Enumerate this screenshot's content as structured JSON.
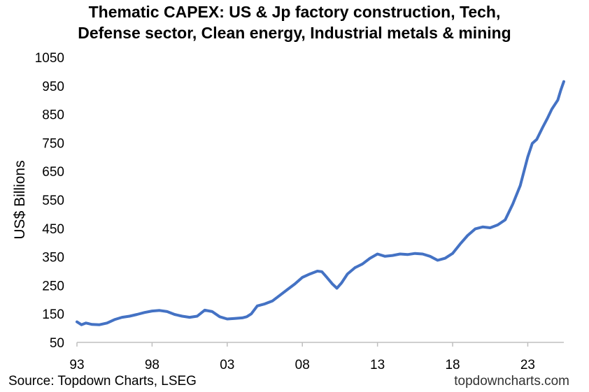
{
  "chart_data": {
    "type": "line",
    "title_lines": [
      "Thematic CAPEX: US & Jp factory construction, Tech,",
      "Defense sector, Clean energy, Industrial metals & mining"
    ],
    "ylabel": "US$ Billions",
    "xlabel": "",
    "ylim": [
      50,
      1050
    ],
    "y_ticks": [
      "1050",
      "950",
      "850",
      "750",
      "650",
      "550",
      "450",
      "350",
      "250",
      "150",
      "50"
    ],
    "x_ticks": [
      "93",
      "98",
      "03",
      "08",
      "13",
      "18",
      "23"
    ],
    "xlim": [
      1993,
      2025.4
    ],
    "line_color": "#4472C4",
    "grid": false,
    "series": [
      {
        "x": [
          1993.0,
          1993.3,
          1993.6,
          1994.0,
          1994.5,
          1995.0,
          1995.5,
          1996.0,
          1996.5,
          1997.0,
          1997.5,
          1998.0,
          1998.5,
          1999.0,
          1999.5,
          2000.0,
          2000.5,
          2001.0,
          2001.5,
          2002.0,
          2002.5,
          2003.0,
          2003.5,
          2004.0,
          2004.3,
          2004.6,
          2005.0,
          2005.5,
          2006.0,
          2006.5,
          2007.0,
          2007.5,
          2008.0,
          2008.5,
          2009.0,
          2009.3,
          2009.6,
          2010.0,
          2010.3,
          2010.6,
          2011.0,
          2011.5,
          2012.0,
          2012.5,
          2013.0,
          2013.5,
          2014.0,
          2014.5,
          2015.0,
          2015.5,
          2016.0,
          2016.5,
          2017.0,
          2017.5,
          2018.0,
          2018.5,
          2019.0,
          2019.5,
          2020.0,
          2020.5,
          2021.0,
          2021.5,
          2022.0,
          2022.5,
          2023.0,
          2023.3,
          2023.6,
          2024.0,
          2024.3,
          2024.6,
          2025.0,
          2025.2,
          2025.4
        ],
        "values": [
          122,
          112,
          118,
          113,
          112,
          118,
          130,
          138,
          142,
          148,
          155,
          160,
          162,
          158,
          148,
          142,
          138,
          142,
          163,
          158,
          140,
          132,
          134,
          136,
          140,
          150,
          178,
          185,
          195,
          215,
          235,
          255,
          278,
          290,
          300,
          298,
          280,
          255,
          240,
          258,
          290,
          312,
          325,
          345,
          360,
          352,
          355,
          360,
          358,
          362,
          360,
          352,
          338,
          345,
          362,
          395,
          425,
          448,
          455,
          452,
          462,
          480,
          535,
          600,
          700,
          748,
          762,
          805,
          835,
          868,
          900,
          935,
          965
        ]
      }
    ]
  },
  "footer": {
    "source": "Source: Topdown Charts, LSEG",
    "brand": "topdowncharts.com"
  }
}
